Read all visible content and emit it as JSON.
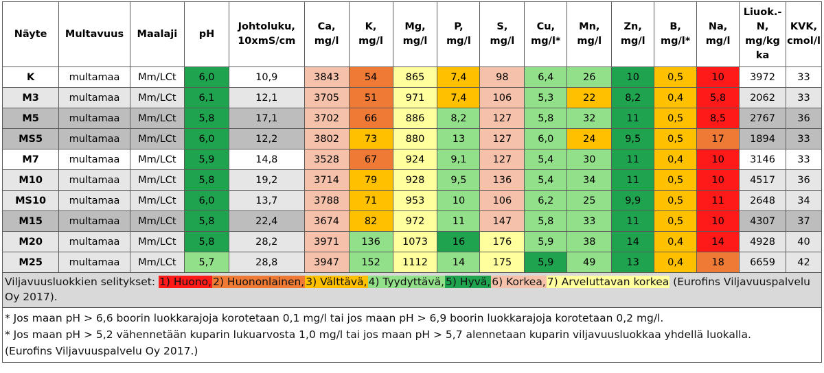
{
  "colors": {
    "huono": "#ff1a1a",
    "huononlainen": "#ee7a36",
    "valttava": "#ffc000",
    "tyydyttava": "#93e08a",
    "hyva": "#20a34f",
    "korkea": "#f5c1aa",
    "arveluttava": "#ffff9e"
  },
  "columns": [
    [
      "Näyte"
    ],
    [
      "Multavuus"
    ],
    [
      "Maalaji"
    ],
    [
      "pH"
    ],
    [
      "Johtoluku,",
      "10xmS/cm"
    ],
    [
      "Ca,",
      "mg/l"
    ],
    [
      "K,",
      "mg/l"
    ],
    [
      "Mg,",
      "mg/l"
    ],
    [
      "P,",
      "mg/l"
    ],
    [
      "S,",
      "mg/l"
    ],
    [
      "Cu,",
      "mg/l*"
    ],
    [
      "Mn,",
      "mg/l"
    ],
    [
      "Zn,",
      "mg/l"
    ],
    [
      "B,",
      "mg/l*"
    ],
    [
      "Na,",
      "mg/l"
    ],
    [
      "Liuok.-",
      "N,",
      "mg/kg",
      "ka"
    ],
    [
      "KVK,",
      "cmol/l"
    ]
  ],
  "rows": [
    {
      "cells": [
        "K",
        "multamaa",
        "Mm/LCt",
        "6,0",
        "10,9",
        "3843",
        "54",
        "865",
        "7,4",
        "98",
        "6,4",
        "26",
        "10",
        "0,5",
        "10",
        "3972",
        "33"
      ],
      "classes": [
        "",
        "",
        "",
        "hyva",
        "",
        "korkea",
        "huononlainen",
        "arveluttava",
        "valttava",
        "korkea",
        "tyydyttava",
        "tyydyttava",
        "hyva",
        "valttava",
        "huono",
        "",
        ""
      ]
    },
    {
      "cells": [
        "M3",
        "multamaa",
        "Mm/LCt",
        "6,1",
        "12,1",
        "3705",
        "51",
        "971",
        "7,4",
        "106",
        "5,3",
        "22",
        "8,2",
        "0,4",
        "5,8",
        "2062",
        "33"
      ],
      "classes": [
        "",
        "",
        "",
        "hyva",
        "",
        "korkea",
        "huononlainen",
        "arveluttava",
        "valttava",
        "korkea",
        "tyydyttava",
        "valttava",
        "hyva",
        "valttava",
        "huono",
        "",
        ""
      ]
    },
    {
      "cells": [
        "M5",
        "multamaa",
        "Mm/LCt",
        "5,8",
        "17,1",
        "3702",
        "66",
        "886",
        "8,2",
        "127",
        "5,8",
        "32",
        "11",
        "0,5",
        "8,5",
        "2767",
        "36"
      ],
      "classes": [
        "",
        "",
        "",
        "hyva",
        "",
        "korkea",
        "huononlainen",
        "arveluttava",
        "tyydyttava",
        "korkea",
        "tyydyttava",
        "tyydyttava",
        "hyva",
        "valttava",
        "huono",
        "",
        ""
      ]
    },
    {
      "cells": [
        "MS5",
        "multamaa",
        "Mm/LCt",
        "6,0",
        "12,2",
        "3802",
        "73",
        "880",
        "13",
        "127",
        "6,0",
        "24",
        "9,5",
        "0,5",
        "17",
        "1894",
        "33"
      ],
      "classes": [
        "",
        "",
        "",
        "hyva",
        "",
        "korkea",
        "valttava",
        "arveluttava",
        "tyydyttava",
        "korkea",
        "tyydyttava",
        "valttava",
        "hyva",
        "valttava",
        "huononlainen",
        "",
        ""
      ]
    },
    {
      "cells": [
        "M7",
        "multamaa",
        "Mm/LCt",
        "5,9",
        "14,8",
        "3528",
        "67",
        "924",
        "9,1",
        "127",
        "5,4",
        "30",
        "11",
        "0,4",
        "10",
        "3146",
        "33"
      ],
      "classes": [
        "",
        "",
        "",
        "hyva",
        "",
        "korkea",
        "huononlainen",
        "arveluttava",
        "tyydyttava",
        "korkea",
        "tyydyttava",
        "tyydyttava",
        "hyva",
        "valttava",
        "huono",
        "",
        ""
      ]
    },
    {
      "cells": [
        "M10",
        "multamaa",
        "Mm/LCt",
        "5,8",
        "19,2",
        "3714",
        "79",
        "928",
        "9,5",
        "136",
        "5,4",
        "34",
        "11",
        "0,5",
        "10",
        "4517",
        "36"
      ],
      "classes": [
        "",
        "",
        "",
        "hyva",
        "",
        "korkea",
        "valttava",
        "arveluttava",
        "tyydyttava",
        "korkea",
        "tyydyttava",
        "tyydyttava",
        "hyva",
        "valttava",
        "huono",
        "",
        ""
      ]
    },
    {
      "cells": [
        "MS10",
        "multamaa",
        "Mm/LCt",
        "6,0",
        "13,7",
        "3788",
        "71",
        "953",
        "10",
        "106",
        "6,2",
        "25",
        "9,9",
        "0,5",
        "11",
        "2648",
        "34"
      ],
      "classes": [
        "",
        "",
        "",
        "hyva",
        "",
        "korkea",
        "valttava",
        "arveluttava",
        "tyydyttava",
        "korkea",
        "tyydyttava",
        "tyydyttava",
        "hyva",
        "valttava",
        "huono",
        "",
        ""
      ]
    },
    {
      "cells": [
        "M15",
        "multamaa",
        "Mm/LCt",
        "5,8",
        "22,4",
        "3674",
        "82",
        "972",
        "11",
        "147",
        "5,8",
        "33",
        "11",
        "0,5",
        "10",
        "4307",
        "37"
      ],
      "classes": [
        "",
        "",
        "",
        "hyva",
        "",
        "korkea",
        "valttava",
        "arveluttava",
        "tyydyttava",
        "korkea",
        "tyydyttava",
        "tyydyttava",
        "hyva",
        "valttava",
        "huono",
        "",
        ""
      ]
    },
    {
      "cells": [
        "M20",
        "multamaa",
        "Mm/LCt",
        "5,8",
        "28,2",
        "3971",
        "136",
        "1073",
        "16",
        "176",
        "5,9",
        "38",
        "14",
        "0,4",
        "14",
        "4928",
        "40"
      ],
      "classes": [
        "",
        "",
        "",
        "hyva",
        "",
        "korkea",
        "tyydyttava",
        "arveluttava",
        "hyva",
        "arveluttava",
        "tyydyttava",
        "tyydyttava",
        "hyva",
        "valttava",
        "huono",
        "",
        ""
      ]
    },
    {
      "cells": [
        "M25",
        "multamaa",
        "Mm/LCt",
        "5,7",
        "28,8",
        "3947",
        "152",
        "1112",
        "14",
        "175",
        "5,9",
        "49",
        "13",
        "0,4",
        "18",
        "6659",
        "42"
      ],
      "classes": [
        "",
        "",
        "",
        "tyydyttava",
        "",
        "korkea",
        "tyydyttava",
        "arveluttava",
        "tyydyttava",
        "arveluttava",
        "hyva",
        "tyydyttava",
        "hyva",
        "valttava",
        "huononlainen",
        "",
        ""
      ]
    }
  ],
  "legend": {
    "prefix": "Viljavuusluokkien selitykset: ",
    "items": [
      {
        "text": "1) Huono,",
        "class": "huono"
      },
      {
        "text": "2) Huononlainen,",
        "class": "huononlainen"
      },
      {
        "text": "3) Välttävä,",
        "class": "valttava"
      },
      {
        "text": "4) Tyydyttävä,",
        "class": "tyydyttava"
      },
      {
        "text": "5) Hyvä,",
        "class": "hyva"
      },
      {
        "text": "6) Korkea,",
        "class": "korkea"
      },
      {
        "text": "7) Arveluttavan korkea",
        "class": "arveluttava"
      }
    ],
    "suffix": " (Eurofins Viljavuuspalvelu Oy 2017)."
  },
  "notes": {
    "note1": "* Jos maan pH > 6,6 boorin luokkarajoja korotetaan 0,1 mg/l tai jos maan pH > 6,9 boorin luokkarajoja korotetaan 0,2 mg/l.",
    "note2": "* Jos maan pH > 5,2 vähennetään kuparin lukuarvosta 1,0 mg/l tai jos maan pH > 5,7 alennetaan kuparin viljavuusluokkaa yhdellä luokalla.",
    "note3": "(Eurofins Viljavuuspalvelu Oy 2017.)"
  }
}
